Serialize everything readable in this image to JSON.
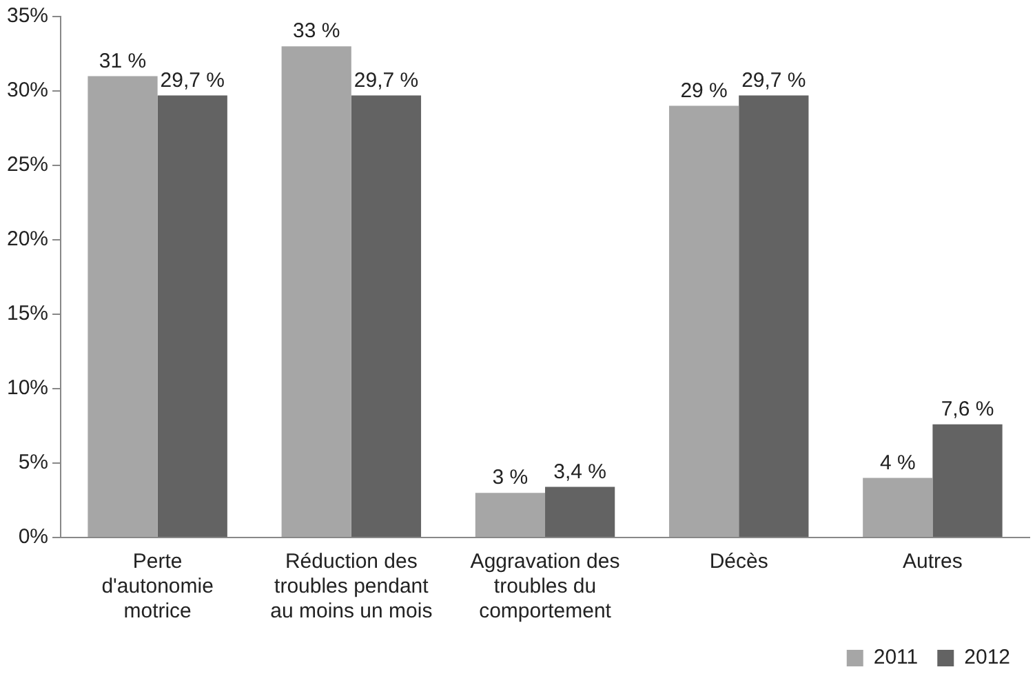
{
  "chart_data": {
    "type": "bar",
    "categories": [
      "Perte d'autonomie motrice",
      "Réduction des troubles pendant au moins un mois",
      "Aggravation des troubles du comportement",
      "Décès",
      "Autres"
    ],
    "series": [
      {
        "name": "2011",
        "color": "#a6a6a6",
        "values": [
          31,
          33,
          3,
          29,
          4
        ],
        "value_labels": [
          "31 %",
          "33 %",
          "3 %",
          "29 %",
          "4 %"
        ]
      },
      {
        "name": "2012",
        "color": "#636363",
        "values": [
          29.7,
          29.7,
          3.4,
          29.7,
          7.6
        ],
        "value_labels": [
          "29,7 %",
          "29,7 %",
          "3,4 %",
          "29,7 %",
          "7,6 %"
        ]
      }
    ],
    "ylim": [
      0,
      35
    ],
    "yticks": [
      {
        "value": 0,
        "label": "0%"
      },
      {
        "value": 5,
        "label": "5%"
      },
      {
        "value": 10,
        "label": "10%"
      },
      {
        "value": 15,
        "label": "15%"
      },
      {
        "value": 20,
        "label": "20%"
      },
      {
        "value": 25,
        "label": "25%"
      },
      {
        "value": 30,
        "label": "30%"
      },
      {
        "value": 35,
        "label": "35%"
      }
    ],
    "grid": false,
    "legend": "bottom right"
  }
}
